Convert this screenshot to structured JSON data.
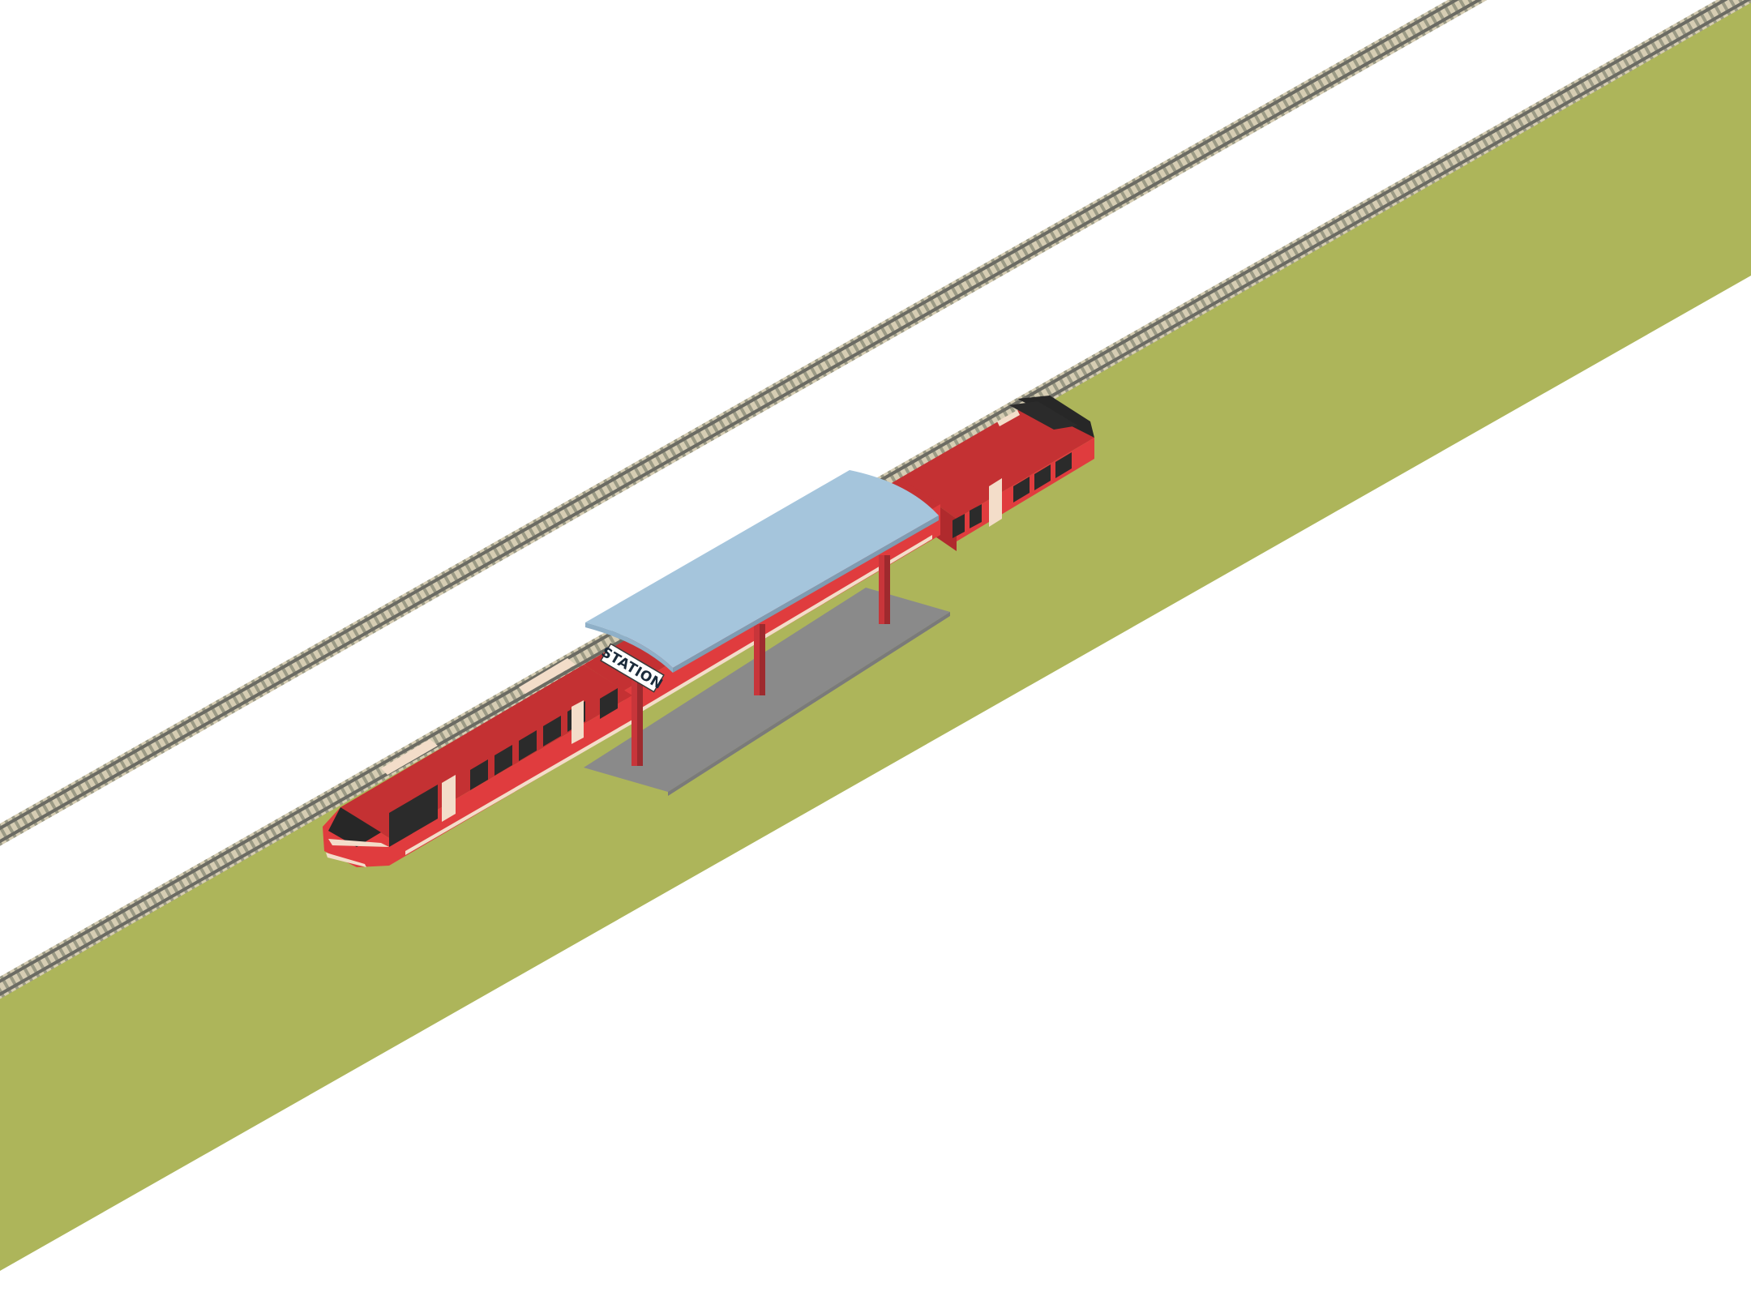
{
  "scene": {
    "sign_text": "STATION"
  },
  "colors": {
    "grass": "#adb55a",
    "rail": "#77776e",
    "tie": "#d6cdb3",
    "platform": "#8a8a8a",
    "roof": "#a5c5dc",
    "pole": "#c8353a",
    "train_body": "#e03c3e",
    "train_roof": "#c43133",
    "train_stripe": "#f3ddc9",
    "window": "#2b2b2b",
    "nose": "#272727"
  }
}
